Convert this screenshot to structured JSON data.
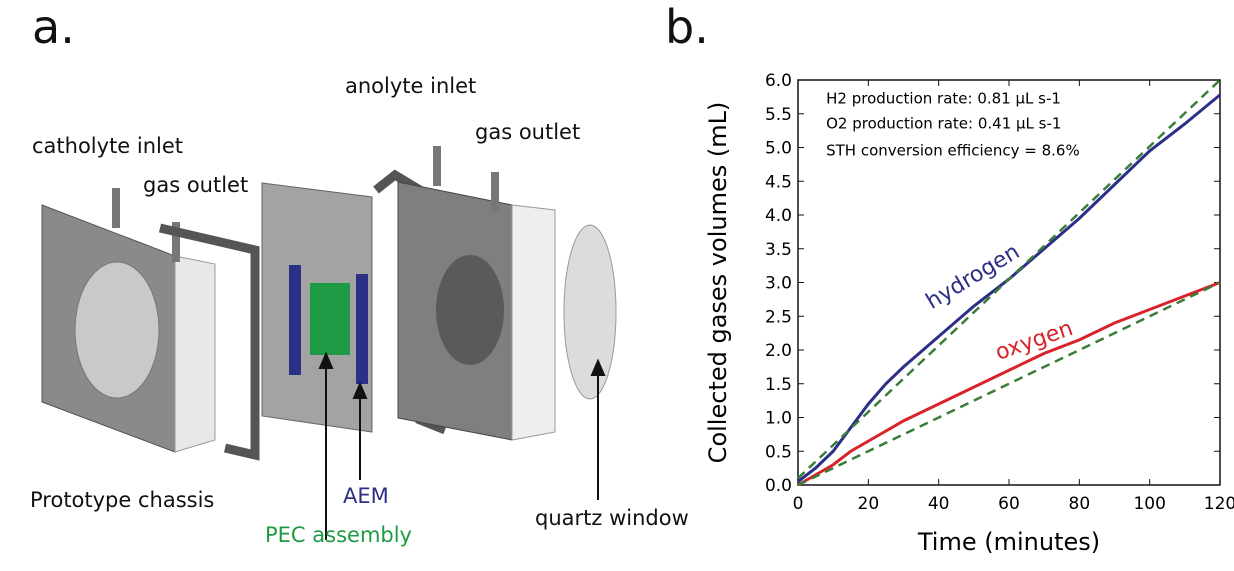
{
  "panel_a": {
    "letter": "a.",
    "labels": {
      "catholyte_inlet": "catholyte inlet",
      "gas_outlet_left": "gas outlet",
      "anolyte_inlet": "anolyte inlet",
      "gas_outlet_right": "gas outlet",
      "prototype_chassis": "Prototype chassis",
      "aem": "AEM",
      "pec_assembly": "PEC assembly",
      "quartz_window": "quartz window"
    },
    "colors": {
      "pec": "#1f9a44",
      "aem": "#2b2f86",
      "plate": "#9a9a9a"
    }
  },
  "panel_b": {
    "letter": "b."
  },
  "chart_data": {
    "type": "line",
    "xlabel": "Time (minutes)",
    "ylabel": "Collected gases volumes (mL)",
    "xlim": [
      0,
      120
    ],
    "ylim": [
      0,
      6.0
    ],
    "xticks": [
      "0",
      "20",
      "40",
      "60",
      "80",
      "100",
      "120"
    ],
    "yticks": [
      "0.0",
      "0.5",
      "1.0",
      "1.5",
      "2.0",
      "2.5",
      "3.0",
      "3.5",
      "4.0",
      "4.5",
      "5.0",
      "5.5",
      "6.0"
    ],
    "annotations": {
      "h2_rate": "H2 production rate: 0.81 µL s-1",
      "o2_rate": "O2 production rate: 0.41 µL s-1",
      "sth": "STH conversion efficiency = 8.6%"
    },
    "series": [
      {
        "name": "hydrogen",
        "color": "#2b2f86",
        "x": [
          0,
          5,
          10,
          15,
          20,
          25,
          30,
          40,
          50,
          60,
          70,
          80,
          90,
          100,
          110,
          120
        ],
        "values": [
          0.05,
          0.25,
          0.5,
          0.85,
          1.2,
          1.5,
          1.75,
          2.2,
          2.65,
          3.05,
          3.5,
          3.95,
          4.45,
          4.95,
          5.35,
          5.78
        ]
      },
      {
        "name": "oxygen",
        "color": "#d8232a",
        "x": [
          0,
          5,
          10,
          15,
          20,
          25,
          30,
          40,
          50,
          60,
          70,
          80,
          90,
          100,
          110,
          120
        ],
        "values": [
          0.0,
          0.15,
          0.3,
          0.5,
          0.65,
          0.8,
          0.95,
          1.2,
          1.45,
          1.7,
          1.95,
          2.15,
          2.4,
          2.6,
          2.8,
          3.0
        ]
      },
      {
        "name": "",
        "color": "#3a7d3a",
        "style": "dashed",
        "x": [
          0,
          120
        ],
        "values": [
          0.1,
          6.0
        ]
      },
      {
        "name": "",
        "color": "#3a7d3a",
        "style": "dashed",
        "x": [
          0,
          120
        ],
        "values": [
          0.0,
          3.0
        ]
      }
    ]
  }
}
